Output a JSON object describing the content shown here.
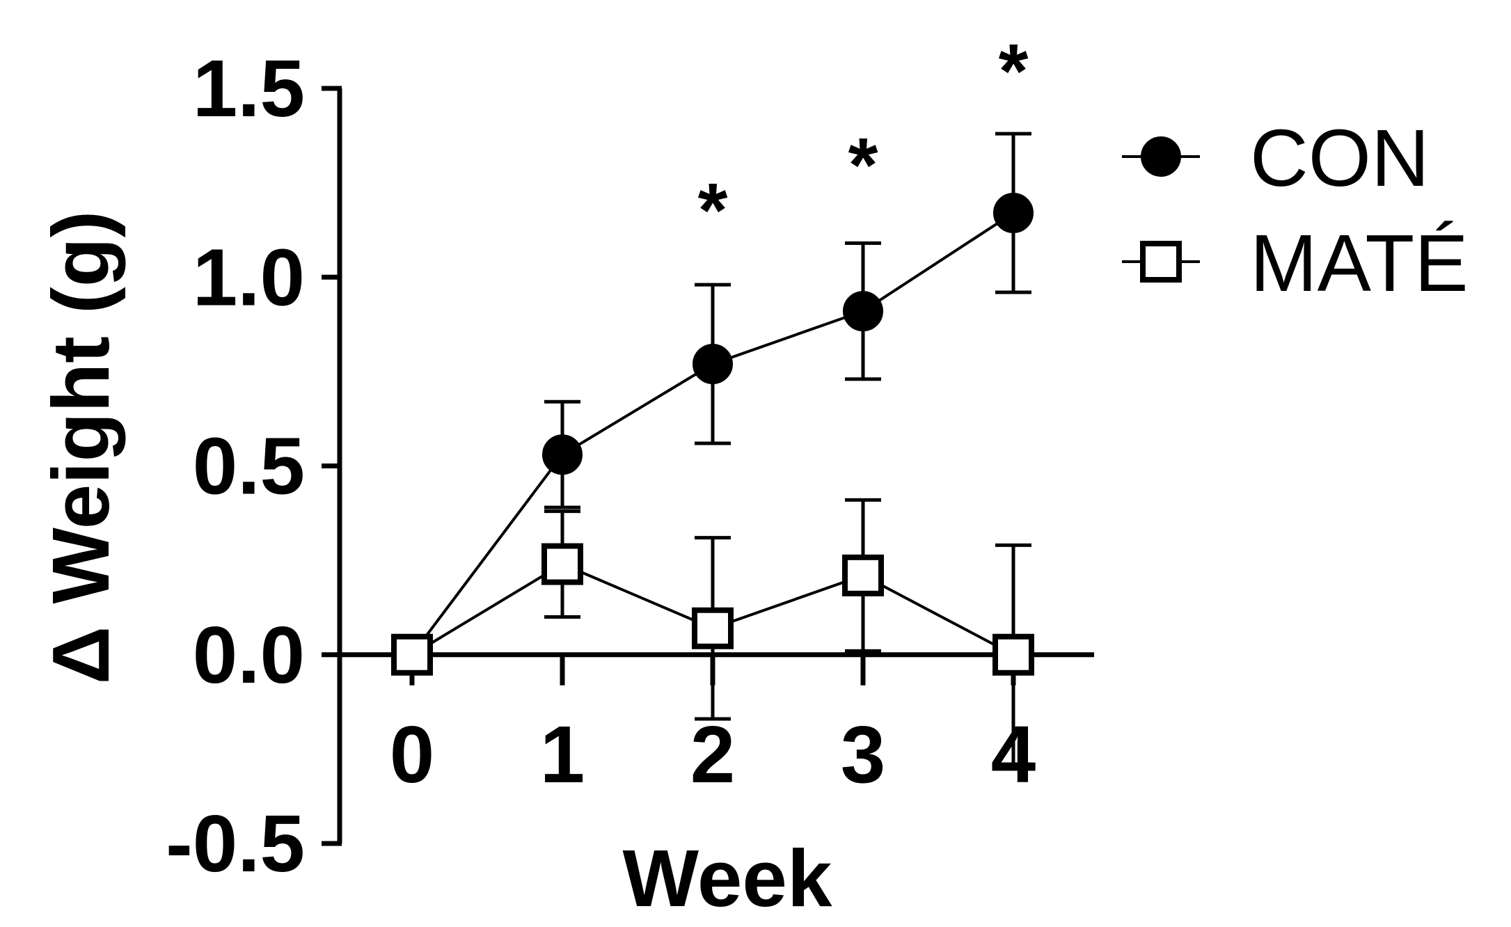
{
  "chart_data": {
    "type": "line",
    "title": "",
    "xlabel": "Week",
    "ylabel": "Δ Weight (g)",
    "x": [
      0,
      1,
      2,
      3,
      4
    ],
    "xticks": [
      "0",
      "1",
      "2",
      "3",
      "4"
    ],
    "ylim": [
      -0.5,
      1.5
    ],
    "yticks": [
      "-0.5",
      "0.0",
      "0.5",
      "1.0",
      "1.5"
    ],
    "grid": false,
    "legend": "right",
    "series": [
      {
        "name": "CON",
        "marker": "filled-circle",
        "color": "#000000",
        "values": [
          0.0,
          0.53,
          0.77,
          0.91,
          1.17
        ],
        "error": [
          0.02,
          0.14,
          0.21,
          0.18,
          0.21
        ]
      },
      {
        "name": "MATÉ",
        "marker": "open-square",
        "color": "#000000",
        "values": [
          0.0,
          0.24,
          0.07,
          0.21,
          0.0
        ],
        "error": [
          0.02,
          0.14,
          0.24,
          0.2,
          0.29
        ]
      }
    ],
    "annotations": [
      {
        "x": 2,
        "text": "*"
      },
      {
        "x": 3,
        "text": "*"
      },
      {
        "x": 4,
        "text": "*"
      }
    ]
  }
}
